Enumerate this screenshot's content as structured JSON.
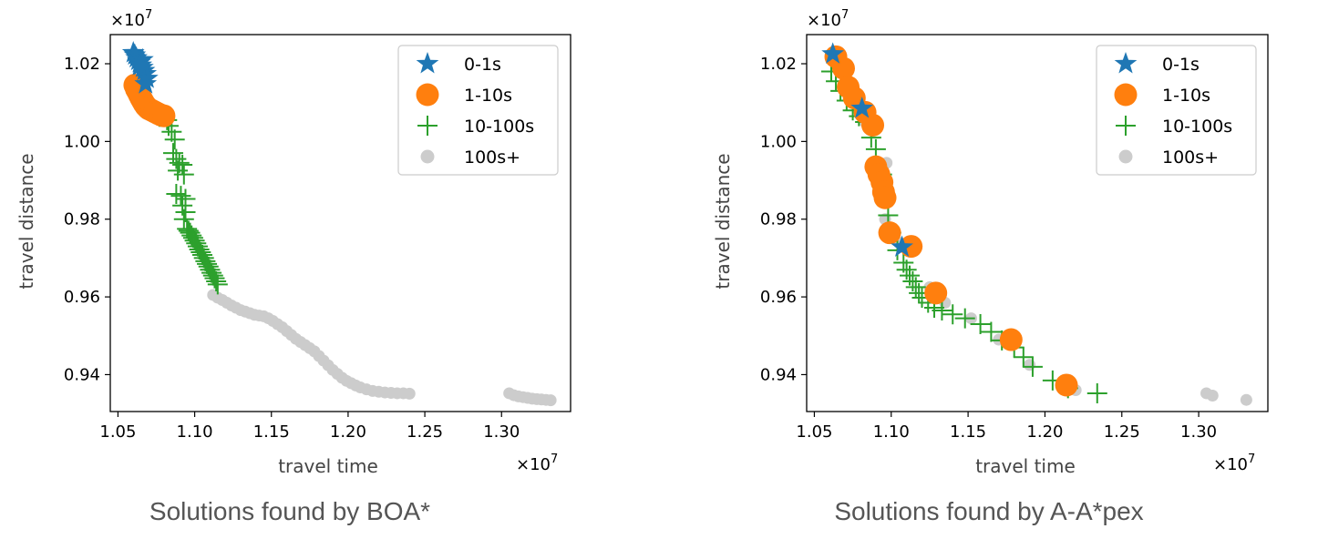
{
  "chart_data": [
    {
      "type": "scatter",
      "caption": "Solutions found by BOA*",
      "xlabel": "travel time",
      "ylabel": "travel distance",
      "x_multiplier": "×10",
      "x_multiplier_exp": "7",
      "y_multiplier": "×10",
      "y_multiplier_exp": "7",
      "xlim": [
        1.045,
        1.345
      ],
      "ylim": [
        0.9305,
        1.0275
      ],
      "xticks": [
        1.05,
        1.1,
        1.15,
        1.2,
        1.25,
        1.3
      ],
      "xtick_labels": [
        "1.05",
        "1.10",
        "1.15",
        "1.20",
        "1.25",
        "1.30"
      ],
      "yticks": [
        0.94,
        0.96,
        0.98,
        1.0,
        1.02
      ],
      "ytick_labels": [
        "0.94",
        "0.96",
        "0.98",
        "1.00",
        "1.02"
      ],
      "legend": {
        "position": "top-right",
        "entries": [
          "0-1s",
          "1-10s",
          "10-100s",
          "100s+"
        ]
      },
      "series": [
        {
          "name": "100s+",
          "marker": "dot",
          "color": "#cccccc",
          "points": [
            [
              1.112,
              0.9605
            ],
            [
              1.115,
              0.9598
            ],
            [
              1.118,
              0.9592
            ],
            [
              1.121,
              0.9585
            ],
            [
              1.124,
              0.9578
            ],
            [
              1.127,
              0.9572
            ],
            [
              1.13,
              0.9566
            ],
            [
              1.133,
              0.9562
            ],
            [
              1.136,
              0.9558
            ],
            [
              1.139,
              0.9554
            ],
            [
              1.142,
              0.9552
            ],
            [
              1.145,
              0.955
            ],
            [
              1.148,
              0.9545
            ],
            [
              1.151,
              0.9538
            ],
            [
              1.154,
              0.953
            ],
            [
              1.157,
              0.9522
            ],
            [
              1.16,
              0.9512
            ],
            [
              1.163,
              0.9502
            ],
            [
              1.166,
              0.9492
            ],
            [
              1.169,
              0.9484
            ],
            [
              1.172,
              0.9476
            ],
            [
              1.175,
              0.9468
            ],
            [
              1.178,
              0.946
            ],
            [
              1.181,
              0.9448
            ],
            [
              1.184,
              0.9436
            ],
            [
              1.187,
              0.9424
            ],
            [
              1.19,
              0.9412
            ],
            [
              1.193,
              0.9402
            ],
            [
              1.196,
              0.9392
            ],
            [
              1.199,
              0.9384
            ],
            [
              1.202,
              0.9378
            ],
            [
              1.205,
              0.9372
            ],
            [
              1.208,
              0.9367
            ],
            [
              1.212,
              0.9362
            ],
            [
              1.216,
              0.9358
            ],
            [
              1.22,
              0.9356
            ],
            [
              1.224,
              0.9354
            ],
            [
              1.228,
              0.9353
            ],
            [
              1.232,
              0.9352
            ],
            [
              1.236,
              0.9352
            ],
            [
              1.24,
              0.9351
            ],
            [
              1.305,
              0.9352
            ],
            [
              1.308,
              0.9347
            ],
            [
              1.311,
              0.9344
            ],
            [
              1.314,
              0.9342
            ],
            [
              1.317,
              0.934
            ],
            [
              1.32,
              0.9338
            ],
            [
              1.323,
              0.9337
            ],
            [
              1.326,
              0.9336
            ],
            [
              1.329,
              0.9335
            ],
            [
              1.332,
              0.9334
            ]
          ]
        },
        {
          "name": "10-100s",
          "marker": "plus",
          "color": "#2ca02c",
          "points": [
            [
              1.082,
              1.0055
            ],
            [
              1.083,
              1.004
            ],
            [
              1.085,
              1.0025
            ],
            [
              1.087,
              1.0005
            ],
            [
              1.086,
              0.997
            ],
            [
              1.088,
              0.9955
            ],
            [
              1.09,
              0.9945
            ],
            [
              1.092,
              0.994
            ],
            [
              1.089,
              0.9925
            ],
            [
              1.093,
              0.9915
            ],
            [
              1.088,
              0.9865
            ],
            [
              1.091,
              0.986
            ],
            [
              1.094,
              0.9852
            ],
            [
              1.092,
              0.9835
            ],
            [
              1.094,
              0.9818
            ],
            [
              1.093,
              0.98
            ],
            [
              1.095,
              0.9775
            ],
            [
              1.097,
              0.9765
            ],
            [
              1.099,
              0.9752
            ],
            [
              1.101,
              0.9738
            ],
            [
              1.103,
              0.9722
            ],
            [
              1.105,
              0.9708
            ],
            [
              1.107,
              0.9692
            ],
            [
              1.109,
              0.9678
            ],
            [
              1.111,
              0.9662
            ],
            [
              1.113,
              0.9648
            ],
            [
              1.115,
              0.9632
            ],
            [
              1.096,
              0.977
            ],
            [
              1.1,
              0.9745
            ],
            [
              1.104,
              0.9715
            ],
            [
              1.108,
              0.9685
            ],
            [
              1.112,
              0.9655
            ],
            [
              1.098,
              0.9758
            ],
            [
              1.102,
              0.973
            ],
            [
              1.106,
              0.97
            ],
            [
              1.11,
              0.967
            ],
            [
              1.114,
              0.964
            ]
          ]
        },
        {
          "name": "1-10s",
          "marker": "circle",
          "color": "#ff7f0e",
          "points": [
            [
              1.061,
              1.0145
            ],
            [
              1.062,
              1.0135
            ],
            [
              1.063,
              1.0128
            ],
            [
              1.064,
              1.012
            ],
            [
              1.065,
              1.0112
            ],
            [
              1.066,
              1.0105
            ],
            [
              1.067,
              1.0098
            ],
            [
              1.068,
              1.0092
            ],
            [
              1.069,
              1.0088
            ],
            [
              1.07,
              1.0084
            ],
            [
              1.072,
              1.008
            ],
            [
              1.074,
              1.0076
            ],
            [
              1.076,
              1.0072
            ],
            [
              1.078,
              1.0068
            ],
            [
              1.08,
              1.0066
            ]
          ]
        },
        {
          "name": "0-1s",
          "marker": "star",
          "color": "#1f77b4",
          "points": [
            [
              1.06,
              1.0228
            ],
            [
              1.061,
              1.0222
            ],
            [
              1.062,
              1.0215
            ],
            [
              1.063,
              1.0208
            ],
            [
              1.064,
              1.0202
            ],
            [
              1.065,
              1.0196
            ],
            [
              1.066,
              1.019
            ],
            [
              1.067,
              1.0182
            ],
            [
              1.068,
              1.0174
            ],
            [
              1.069,
              1.0162
            ],
            [
              1.068,
              1.0148
            ],
            [
              1.066,
              1.021
            ],
            [
              1.064,
              1.0195
            ]
          ]
        }
      ]
    },
    {
      "type": "scatter",
      "caption": "Solutions found by A-A*pex",
      "xlabel": "travel time",
      "ylabel": "travel distance",
      "x_multiplier": "×10",
      "x_multiplier_exp": "7",
      "y_multiplier": "×10",
      "y_multiplier_exp": "7",
      "xlim": [
        1.045,
        1.345
      ],
      "ylim": [
        0.9305,
        1.0275
      ],
      "xticks": [
        1.05,
        1.1,
        1.15,
        1.2,
        1.25,
        1.3
      ],
      "xtick_labels": [
        "1.05",
        "1.10",
        "1.15",
        "1.20",
        "1.25",
        "1.30"
      ],
      "yticks": [
        0.94,
        0.96,
        0.98,
        1.0,
        1.02
      ],
      "ytick_labels": [
        "0.94",
        "0.96",
        "0.98",
        "1.00",
        "1.02"
      ],
      "legend": {
        "position": "top-right",
        "entries": [
          "0-1s",
          "1-10s",
          "10-100s",
          "100s+"
        ]
      },
      "series": [
        {
          "name": "100s+",
          "marker": "dot",
          "color": "#cccccc",
          "points": [
            [
              1.063,
              1.0215
            ],
            [
              1.072,
              1.013
            ],
            [
              1.083,
              1.005
            ],
            [
              1.097,
              0.9945
            ],
            [
              1.096,
              0.98
            ],
            [
              1.105,
              0.974
            ],
            [
              1.125,
              0.9625
            ],
            [
              1.135,
              0.9585
            ],
            [
              1.152,
              0.9545
            ],
            [
              1.17,
              0.949
            ],
            [
              1.19,
              0.9425
            ],
            [
              1.22,
              0.936
            ],
            [
              1.305,
              0.9352
            ],
            [
              1.309,
              0.9346
            ],
            [
              1.331,
              0.9335
            ]
          ]
        },
        {
          "name": "10-100s",
          "marker": "plus",
          "color": "#2ca02c",
          "points": [
            [
              1.061,
              1.018
            ],
            [
              1.064,
              1.0155
            ],
            [
              1.067,
              1.013
            ],
            [
              1.071,
              1.0105
            ],
            [
              1.075,
              1.008
            ],
            [
              1.079,
              1.0065
            ],
            [
              1.083,
              1.005
            ],
            [
              1.087,
              1.001
            ],
            [
              1.09,
              0.998
            ],
            [
              1.094,
              0.9915
            ],
            [
              1.098,
              0.981
            ],
            [
              1.1,
              0.9765
            ],
            [
              1.104,
              0.972
            ],
            [
              1.108,
              0.9688
            ],
            [
              1.11,
              0.967
            ],
            [
              1.112,
              0.9655
            ],
            [
              1.114,
              0.964
            ],
            [
              1.116,
              0.9625
            ],
            [
              1.118,
              0.961
            ],
            [
              1.12,
              0.9598
            ],
            [
              1.124,
              0.9585
            ],
            [
              1.128,
              0.9572
            ],
            [
              1.133,
              0.9565
            ],
            [
              1.14,
              0.9555
            ],
            [
              1.148,
              0.9545
            ],
            [
              1.158,
              0.953
            ],
            [
              1.165,
              0.951
            ],
            [
              1.172,
              0.9488
            ],
            [
              1.18,
              0.947
            ],
            [
              1.186,
              0.9445
            ],
            [
              1.192,
              0.942
            ],
            [
              1.205,
              0.9385
            ],
            [
              1.215,
              0.9365
            ],
            [
              1.234,
              0.9352
            ]
          ]
        },
        {
          "name": "1-10s",
          "marker": "circle",
          "color": "#ff7f0e",
          "points": [
            [
              1.064,
              1.0218
            ],
            [
              1.069,
              1.0188
            ],
            [
              1.072,
              1.014
            ],
            [
              1.076,
              1.0112
            ],
            [
              1.083,
              1.0075
            ],
            [
              1.088,
              1.0042
            ],
            [
              1.09,
              0.9935
            ],
            [
              1.092,
              0.9915
            ],
            [
              1.094,
              0.9895
            ],
            [
              1.095,
              0.987
            ],
            [
              1.096,
              0.9855
            ],
            [
              1.099,
              0.9765
            ],
            [
              1.113,
              0.973
            ],
            [
              1.129,
              0.961
            ],
            [
              1.178,
              0.949
            ],
            [
              1.214,
              0.9373
            ]
          ]
        },
        {
          "name": "0-1s",
          "marker": "star",
          "color": "#1f77b4",
          "points": [
            [
              1.062,
              1.0225
            ],
            [
              1.081,
              1.0085
            ],
            [
              1.107,
              0.9728
            ]
          ]
        }
      ]
    }
  ]
}
